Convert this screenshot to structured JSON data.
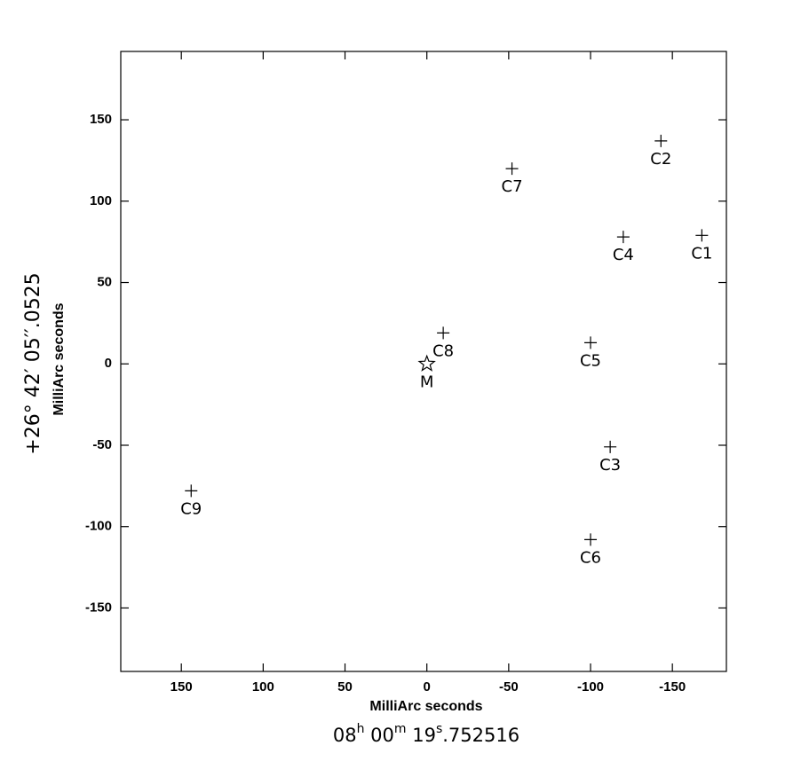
{
  "chart_data": {
    "type": "scatter",
    "xlabel": "MilliArc seconds",
    "xlabel2": [
      "08",
      "h",
      " 00",
      "m",
      " 19",
      "s",
      ".752516"
    ],
    "ylabel": "MilliArc seconds",
    "ylabel2": "+26° 42′ 05′′.0525",
    "xlim": [
      187,
      -183
    ],
    "ylim": [
      -189,
      192
    ],
    "xticks": [
      150,
      100,
      50,
      0,
      -50,
      -100,
      -150
    ],
    "yticks": [
      -150,
      -100,
      -50,
      0,
      50,
      100,
      150
    ],
    "color": "#000000",
    "series": [
      {
        "marker": "plus",
        "labels": [
          "C1",
          "C2",
          "C3",
          "C4",
          "C5",
          "C6",
          "C7",
          "C8",
          "C9"
        ],
        "x": [
          -168,
          -143,
          -112,
          -120,
          -100,
          -100,
          -52,
          -10,
          144
        ],
        "y": [
          79,
          137,
          -51,
          78,
          13,
          -108,
          120,
          19,
          -78
        ]
      },
      {
        "marker": "star",
        "labels": [
          "M"
        ],
        "x": [
          0
        ],
        "y": [
          0
        ]
      }
    ]
  }
}
